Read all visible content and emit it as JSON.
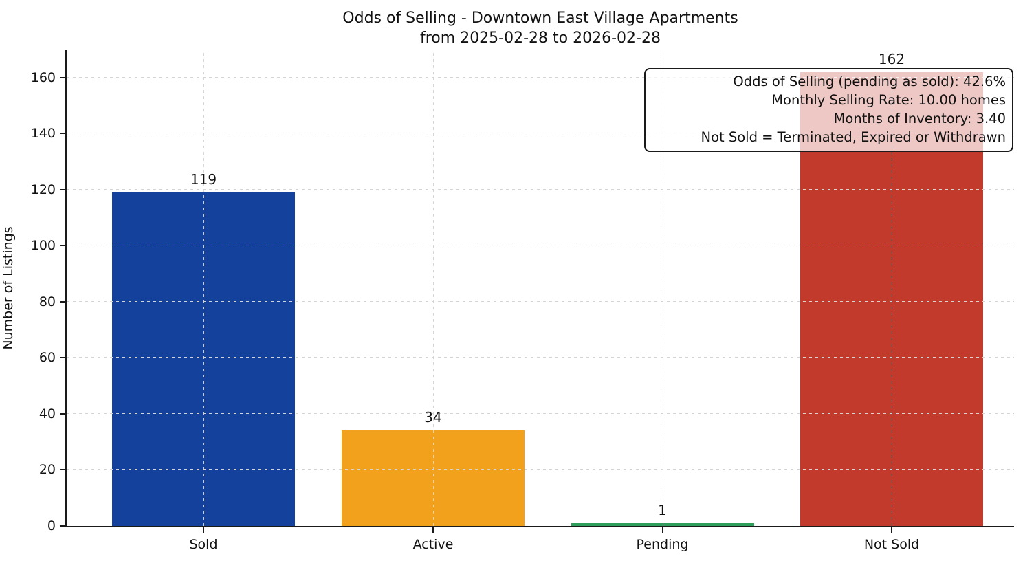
{
  "title": {
    "line1": "Odds of Selling - Downtown East Village Apartments",
    "line2": "from 2025-02-28 to 2026-02-28"
  },
  "chart_data": {
    "type": "bar",
    "title": "Odds of Selling - Downtown East Village Apartments from 2025-02-28 to 2026-02-28",
    "categories": [
      "Sold",
      "Active",
      "Pending",
      "Not Sold"
    ],
    "values": [
      119,
      34,
      1,
      162
    ],
    "value_labels": [
      "119",
      "34",
      "1",
      "162"
    ],
    "bar_colors": [
      "#14419c",
      "#f1a11b",
      "#2e9e5b",
      "#c13a2c"
    ],
    "xlabel": "",
    "ylabel": "Number of Listings",
    "ylim": [
      0,
      170
    ],
    "yticks": [
      0,
      20,
      40,
      60,
      80,
      100,
      120,
      140,
      160
    ],
    "grid": "dashed, light gray, horizontal and vertical at category centers, drawn above bars",
    "legend": "none"
  },
  "annotation": {
    "lines": [
      "Odds of Selling (pending as sold): 42.6%",
      "Monthly Selling Rate: 10.00 homes",
      "Months of Inventory: 3.40",
      "Not Sold = Terminated, Expired or Withdrawn"
    ]
  }
}
